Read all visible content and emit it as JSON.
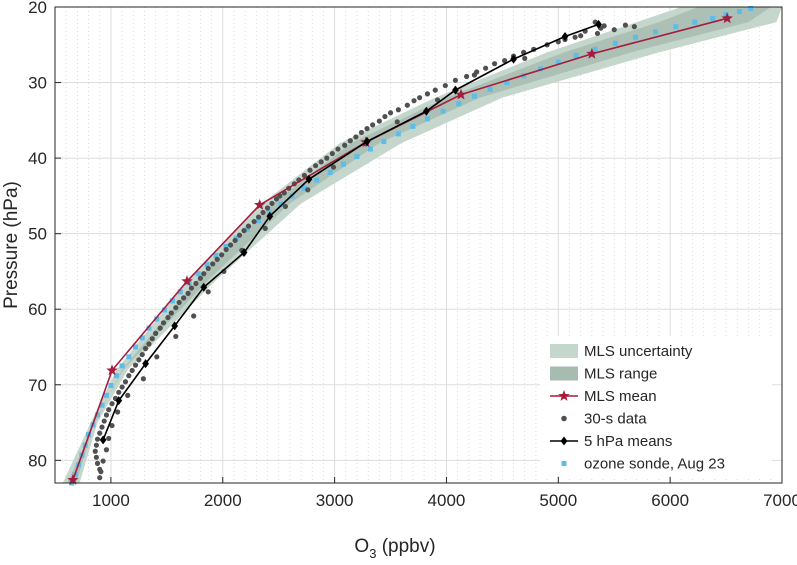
{
  "chart_data": {
    "type": "line",
    "xlabel_main": "O",
    "xlabel_sub": "3",
    "xlabel_rest": " (ppbv)",
    "ylabel": "Pressure (hPa)",
    "xlim": [
      500,
      7000
    ],
    "ylim": [
      20,
      83
    ],
    "y_reversed": true,
    "x_ticks": [
      1000,
      2000,
      3000,
      4000,
      5000,
      6000,
      7000
    ],
    "y_ticks": [
      20,
      30,
      40,
      50,
      60,
      70,
      80
    ],
    "x_tick_labels": [
      "1000",
      "2000",
      "3000",
      "4000",
      "5000",
      "6000",
      "7000"
    ],
    "y_tick_labels": [
      "20",
      "30",
      "40",
      "50",
      "60",
      "70",
      "80"
    ],
    "grid": true,
    "legend_position": "bottom-right",
    "colors": {
      "uncertainty": "#c5d6cd",
      "range": "#a7bcb0",
      "mls_mean": "#a51c3c",
      "data_30s": "#505050",
      "means_5hpa": "#000000",
      "sonde": "#5bbde8"
    },
    "series": [
      {
        "name": "MLS uncertainty",
        "kind": "band",
        "p": [
          20,
          22,
          26,
          32,
          38,
          46,
          56,
          68,
          75,
          83
        ],
        "x_low": [
          6100,
          5700,
          4900,
          3900,
          3050,
          2350,
          1700,
          1050,
          820,
          570
        ],
        "x_high": [
          7000,
          6950,
          5900,
          4500,
          3600,
          2700,
          1950,
          1150,
          880,
          720
        ]
      },
      {
        "name": "MLS range",
        "kind": "band",
        "p": [
          20,
          22,
          26,
          32,
          38,
          46,
          56,
          68,
          75,
          83
        ],
        "x_low": [
          6250,
          5900,
          5050,
          4000,
          3150,
          2450,
          1780,
          1100,
          860,
          610
        ],
        "x_high": [
          6900,
          6700,
          5650,
          4300,
          3400,
          2600,
          1880,
          1110,
          850,
          690
        ]
      },
      {
        "name": "MLS mean",
        "kind": "line",
        "p": [
          21.5,
          26.2,
          31.6,
          37.9,
          46.2,
          56.3,
          68.1,
          82.6
        ],
        "x": [
          6510,
          5300,
          4130,
          3280,
          2330,
          1680,
          1010,
          660
        ]
      },
      {
        "name": "30-s data",
        "kind": "scatter",
        "p": [
          22.0,
          22.5,
          22.8,
          23.2,
          23.0,
          22.4,
          22.6,
          23.5,
          24.0,
          24.6,
          25.0,
          25.6,
          26.0,
          26.5,
          27.1,
          27.5,
          28.1,
          28.6,
          29.2,
          29.7,
          30.4,
          31.0,
          31.5,
          32.0,
          32.4,
          33.0,
          33.6,
          34.0,
          34.5,
          35.1,
          35.6,
          36.1,
          36.6,
          37.2,
          37.7,
          38.3,
          38.8,
          39.4,
          40.0,
          40.5,
          41.0,
          41.6,
          42.3,
          42.9,
          43.4,
          44.0,
          44.6,
          45.0,
          45.4,
          46.0,
          46.6,
          47.2,
          47.8,
          48.4,
          49.0,
          49.6,
          50.2,
          50.9,
          51.5,
          52.1,
          52.8,
          53.4,
          54.0,
          54.6,
          55.3,
          55.9,
          56.6,
          57.2,
          57.9,
          58.5,
          59.1,
          59.8,
          60.5,
          61.1,
          61.8,
          62.5,
          63.2,
          63.9,
          64.6,
          65.2,
          66.0,
          66.7,
          67.4,
          68.1,
          68.8,
          69.6,
          70.3,
          71.0,
          71.8,
          72.5,
          73.3,
          74.0,
          74.8,
          75.6,
          76.4,
          77.2,
          78.0,
          78.8,
          79.6,
          80.4,
          81.2,
          73.6,
          75.4,
          77.1,
          78.6,
          80.1,
          81.5,
          82.3,
          71.4,
          69.2,
          66.3,
          63.6,
          60.9,
          57.7,
          55.0,
          52.2,
          49.3,
          46.4,
          44.2,
          41.2,
          38.1,
          35.2,
          32.3,
          29.0,
          26.8,
          24.3,
          23.8
        ],
        "x": [
          5330,
          5410,
          5380,
          5240,
          5500,
          5600,
          5680,
          5350,
          5150,
          5000,
          4900,
          4780,
          4690,
          4600,
          4520,
          4430,
          4350,
          4270,
          4180,
          4080,
          3990,
          3900,
          3830,
          3760,
          3710,
          3650,
          3570,
          3500,
          3450,
          3400,
          3340,
          3290,
          3240,
          3190,
          3140,
          3090,
          3030,
          2980,
          2930,
          2880,
          2830,
          2780,
          2730,
          2680,
          2640,
          2590,
          2550,
          2510,
          2480,
          2440,
          2400,
          2360,
          2320,
          2280,
          2230,
          2190,
          2150,
          2110,
          2070,
          2030,
          1990,
          1950,
          1910,
          1870,
          1830,
          1800,
          1760,
          1720,
          1690,
          1650,
          1610,
          1580,
          1540,
          1510,
          1470,
          1440,
          1400,
          1370,
          1340,
          1310,
          1280,
          1250,
          1220,
          1190,
          1160,
          1130,
          1100,
          1070,
          1040,
          1010,
          980,
          960,
          940,
          920,
          900,
          880,
          870,
          860,
          870,
          880,
          900,
          1060,
          1010,
          980,
          960,
          930,
          910,
          900,
          1150,
          1290,
          1410,
          1580,
          1740,
          1870,
          2010,
          2170,
          2380,
          2560,
          2760,
          2990,
          3280,
          3560,
          3920,
          4250,
          4700,
          5060,
          5200
        ]
      },
      {
        "name": "5 hPa means",
        "kind": "line",
        "p": [
          22.3,
          23.9,
          26.9,
          31.0,
          33.8,
          37.8,
          42.8,
          47.7,
          52.5,
          57.1,
          62.2,
          67.2,
          72.1,
          77.3
        ],
        "x": [
          5360,
          5060,
          4600,
          4080,
          3820,
          3290,
          2770,
          2420,
          2190,
          1830,
          1570,
          1310,
          1070,
          930
        ]
      },
      {
        "name": "ozone sonde, Aug 23",
        "kind": "scatter",
        "p": [
          20.2,
          20.6,
          21.0,
          21.5,
          22.0,
          22.6,
          23.3,
          24.0,
          24.8,
          25.6,
          26.4,
          27.3,
          28.2,
          29.1,
          30.0,
          30.9,
          31.8,
          32.8,
          33.8,
          34.8,
          35.8,
          36.8,
          37.8,
          38.8,
          39.8,
          40.8,
          41.9,
          42.9,
          44.0,
          45.0,
          46.1,
          47.2,
          48.3,
          49.4,
          50.6,
          51.7,
          52.9,
          54.1,
          55.3,
          56.5,
          57.7,
          58.9,
          60.1,
          61.3,
          62.5,
          63.8,
          65.0,
          66.3,
          67.5,
          68.8,
          70.1,
          71.4,
          72.7,
          74.0,
          75.3,
          76.6,
          78.0,
          79.3,
          80.6,
          81.9,
          83.0
        ],
        "x": [
          6720,
          6620,
          6500,
          6380,
          6220,
          6050,
          5870,
          5690,
          5510,
          5330,
          5160,
          5000,
          4840,
          4690,
          4540,
          4390,
          4250,
          4110,
          3970,
          3830,
          3700,
          3570,
          3440,
          3320,
          3200,
          3080,
          2960,
          2840,
          2730,
          2620,
          2520,
          2420,
          2320,
          2220,
          2120,
          2030,
          1940,
          1860,
          1780,
          1700,
          1620,
          1550,
          1480,
          1410,
          1340,
          1280,
          1220,
          1160,
          1100,
          1050,
          1000,
          960,
          920,
          880,
          840,
          800,
          770,
          740,
          710,
          680,
          650
        ]
      }
    ],
    "legend": [
      {
        "label": "MLS uncertainty",
        "kind": "patch",
        "color": "#c5d6cd"
      },
      {
        "label": "MLS range",
        "kind": "patch",
        "color": "#a7bcb0"
      },
      {
        "label": "MLS mean",
        "kind": "line-star",
        "color": "#a51c3c"
      },
      {
        "label": "30-s data",
        "kind": "dot",
        "color": "#505050"
      },
      {
        "label": "5 hPa means",
        "kind": "line-diamond",
        "color": "#000000"
      },
      {
        "label": "ozone sonde, Aug 23",
        "kind": "square",
        "color": "#5bbde8"
      }
    ]
  }
}
